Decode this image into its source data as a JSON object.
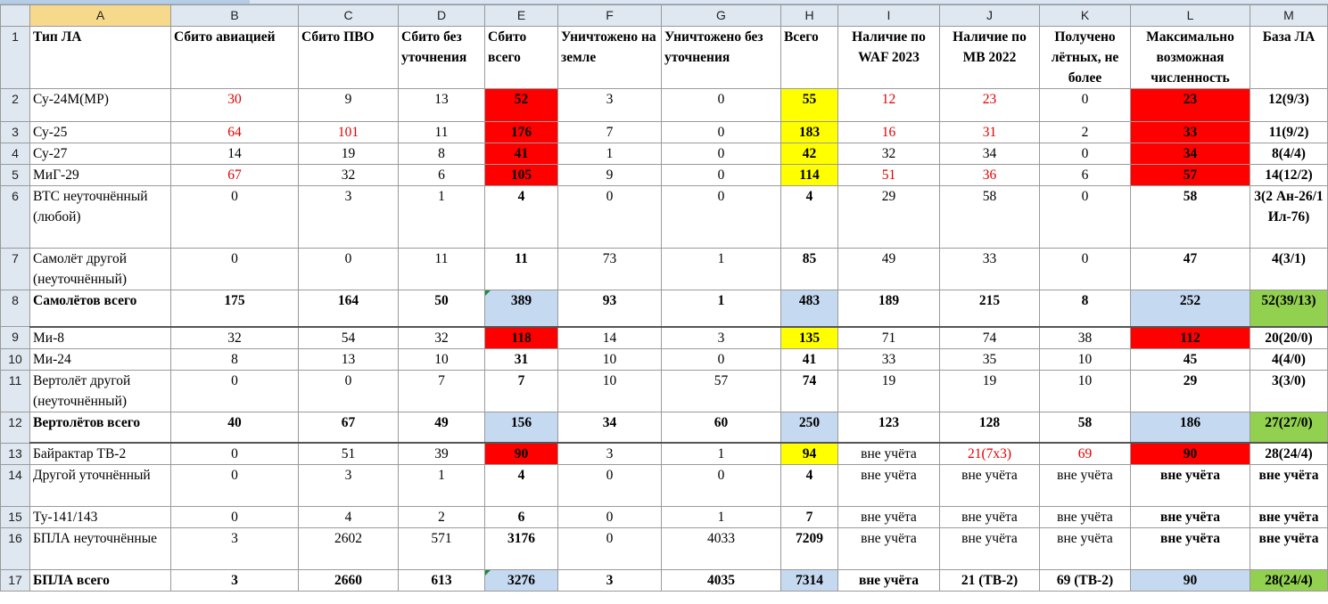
{
  "columns": [
    "A",
    "B",
    "C",
    "D",
    "E",
    "F",
    "G",
    "H",
    "I",
    "J",
    "K",
    "L",
    "M"
  ],
  "header_row": {
    "row_num": "1",
    "cells": [
      "Тип ЛА",
      "Сбито авиацией",
      "Сбито ПВО",
      "Сбито без уточнения",
      "Сбито всего",
      "Уничтожено на земле",
      "Уничтожено без уточнения",
      "Всего",
      "Наличие по WAF 2023",
      "Наличие по МВ 2022",
      "Получено лётных, не более",
      "Максимально возможная численность",
      "База ЛА"
    ]
  },
  "rows": [
    {
      "n": "2",
      "label": "Су-24М(МР)",
      "bold": false,
      "vals": [
        "30",
        "9",
        "13",
        "52",
        "3",
        "0",
        "55",
        "12",
        "23",
        "0",
        "23",
        "12(9/3)"
      ]
    },
    {
      "n": "3",
      "label": "Су-25",
      "bold": false,
      "vals": [
        "64",
        "101",
        "11",
        "176",
        "7",
        "0",
        "183",
        "16",
        "31",
        "2",
        "33",
        "11(9/2)"
      ]
    },
    {
      "n": "4",
      "label": "Су-27",
      "bold": false,
      "vals": [
        "14",
        "19",
        "8",
        "41",
        "1",
        "0",
        "42",
        "32",
        "34",
        "0",
        "34",
        "8(4/4)"
      ]
    },
    {
      "n": "5",
      "label": "МиГ-29",
      "bold": false,
      "vals": [
        "67",
        "32",
        "6",
        "105",
        "9",
        "0",
        "114",
        "51",
        "36",
        "6",
        "57",
        "14(12/2)"
      ]
    },
    {
      "n": "6",
      "label": "ВТС неуточнённый (любой)",
      "bold": false,
      "vals": [
        "0",
        "3",
        "1",
        "4",
        "0",
        "0",
        "4",
        "29",
        "58",
        "0",
        "58",
        "3(2 Ан-26/1 Ил-76)"
      ]
    },
    {
      "n": "7",
      "label": "Самолёт другой (неуточнённый)",
      "bold": false,
      "vals": [
        "0",
        "0",
        "11",
        "11",
        "73",
        "1",
        "85",
        "49",
        "33",
        "0",
        "47",
        "4(3/1)"
      ]
    },
    {
      "n": "8",
      "label": "Самолётов всего",
      "bold": true,
      "vals": [
        "175",
        "164",
        "50",
        "389",
        "93",
        "1",
        "483",
        "189",
        "215",
        "8",
        "252",
        "52(39/13)"
      ]
    },
    {
      "n": "9",
      "label": "Ми-8",
      "bold": false,
      "vals": [
        "32",
        "54",
        "32",
        "118",
        "14",
        "3",
        "135",
        "71",
        "74",
        "38",
        "112",
        "20(20/0)"
      ]
    },
    {
      "n": "10",
      "label": "Ми-24",
      "bold": false,
      "vals": [
        "8",
        "13",
        "10",
        "31",
        "10",
        "0",
        "41",
        "33",
        "35",
        "10",
        "45",
        "4(4/0)"
      ]
    },
    {
      "n": "11",
      "label": "Вертолёт другой (неуточнённый)",
      "bold": false,
      "vals": [
        "0",
        "0",
        "7",
        "7",
        "10",
        "57",
        "74",
        "19",
        "19",
        "10",
        "29",
        "3(3/0)"
      ]
    },
    {
      "n": "12",
      "label": "Вертолётов всего",
      "bold": true,
      "vals": [
        "40",
        "67",
        "49",
        "156",
        "34",
        "60",
        "250",
        "123",
        "128",
        "58",
        "186",
        "27(27/0)"
      ]
    },
    {
      "n": "13",
      "label": "Байрактар ТВ-2",
      "bold": false,
      "vals": [
        "0",
        "51",
        "39",
        "90",
        "3",
        "1",
        "94",
        "вне учёта",
        "21(7х3)",
        "69",
        "90",
        "28(24/4)"
      ]
    },
    {
      "n": "14",
      "label": "Другой уточнённый",
      "bold": false,
      "vals": [
        "0",
        "3",
        "1",
        "4",
        "0",
        "0",
        "4",
        "вне учёта",
        "вне учёта",
        "вне учёта",
        "вне учёта",
        "вне учёта"
      ]
    },
    {
      "n": "15",
      "label": "Ту-141/143",
      "bold": false,
      "vals": [
        "0",
        "4",
        "2",
        "6",
        "0",
        "1",
        "7",
        "вне учёта",
        "вне учёта",
        "вне учёта",
        "вне учёта",
        "вне учёта"
      ]
    },
    {
      "n": "16",
      "label": "БПЛА неуточнённые",
      "bold": false,
      "vals": [
        "3",
        "2602",
        "571",
        "3176",
        "0",
        "4033",
        "7209",
        "вне учёта",
        "вне учёта",
        "вне учёта",
        "вне учёта",
        "вне учёта"
      ]
    },
    {
      "n": "17",
      "label": "БПЛА всего",
      "bold": true,
      "vals": [
        "3",
        "2660",
        "613",
        "3276",
        "3",
        "4035",
        "7314",
        "вне учёта",
        "21 (ТВ-2)",
        "69 (ТВ-2)",
        "90",
        "28(24/4)"
      ]
    }
  ],
  "colors": {
    "red_fill": "#ff0000",
    "yellow_fill": "#ffff00",
    "blue_fill": "#c5d9f1",
    "green_fill": "#92d050",
    "red_text": "#e00000"
  }
}
